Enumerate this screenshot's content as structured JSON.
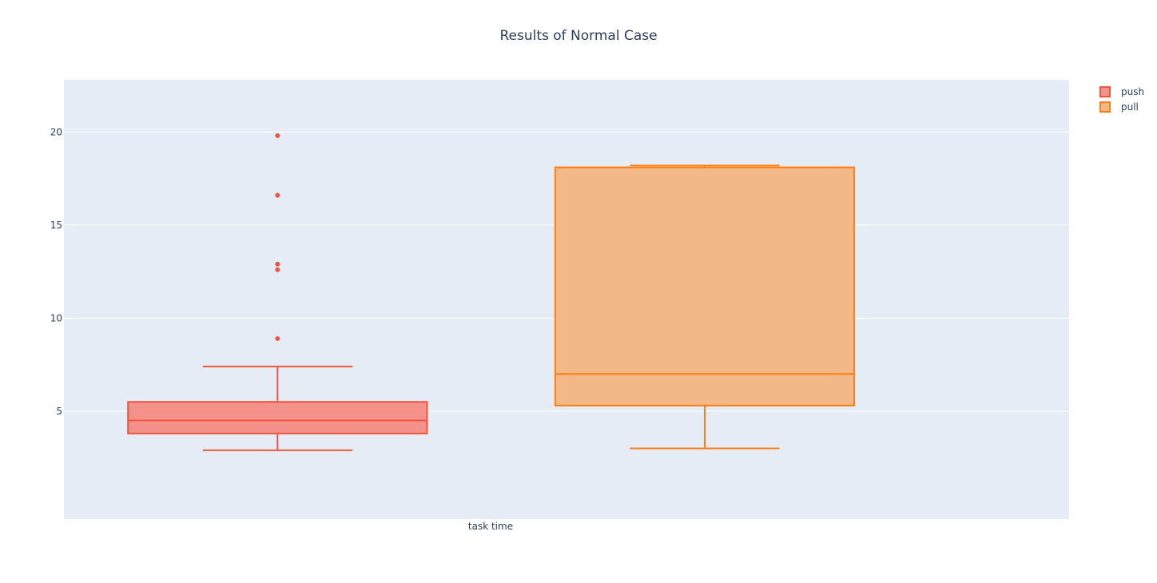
{
  "chart_data": {
    "type": "box",
    "title": "Results of Normal Case",
    "xlabel": "",
    "ylabel": "",
    "categories": [
      "task time"
    ],
    "ylim": [
      -0.8,
      22.8
    ],
    "yticks": [
      5,
      10,
      15,
      20
    ],
    "grid": true,
    "legend_position": "top-right",
    "series": [
      {
        "name": "push",
        "color": "#EF553B",
        "fill": "#F4918A",
        "whisker_low": 2.9,
        "q1": 3.8,
        "median": 4.5,
        "q3": 5.5,
        "whisker_high": 7.4,
        "outliers": [
          8.9,
          12.6,
          12.9,
          16.6,
          19.8
        ]
      },
      {
        "name": "pull",
        "color": "#FF7F0E",
        "fill": "#F2B888",
        "whisker_low": 3.0,
        "q1": 5.3,
        "median": 7.0,
        "q3": 18.1,
        "whisker_high": 18.2,
        "outliers": []
      }
    ]
  }
}
